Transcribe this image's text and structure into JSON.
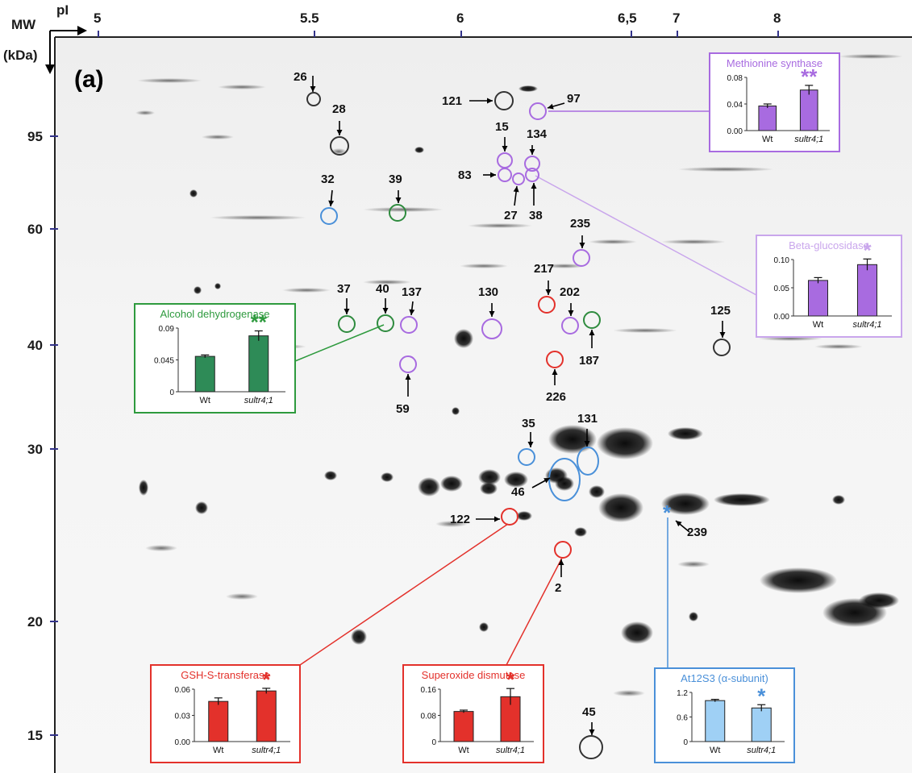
{
  "panel_label": "(a)",
  "axes": {
    "mw_label": "MW",
    "mw_unit": "(kDa)",
    "pi_label": "pI",
    "pi_ticks": [
      "5",
      "5.5",
      "6",
      "6,5",
      "7",
      "8"
    ],
    "mw_ticks": [
      "95",
      "60",
      "40",
      "30",
      "20",
      "15"
    ]
  },
  "spots": [
    {
      "id": "26",
      "group": "black"
    },
    {
      "id": "28",
      "group": "black"
    },
    {
      "id": "121",
      "group": "black"
    },
    {
      "id": "97",
      "group": "purple"
    },
    {
      "id": "15",
      "group": "purple"
    },
    {
      "id": "134",
      "group": "purple"
    },
    {
      "id": "83",
      "group": "purple"
    },
    {
      "id": "27",
      "group": "purple"
    },
    {
      "id": "38",
      "group": "purple"
    },
    {
      "id": "32",
      "group": "blue"
    },
    {
      "id": "39",
      "group": "green"
    },
    {
      "id": "235",
      "group": "purple"
    },
    {
      "id": "217",
      "group": "red"
    },
    {
      "id": "37",
      "group": "green"
    },
    {
      "id": "40",
      "group": "green"
    },
    {
      "id": "137",
      "group": "purple"
    },
    {
      "id": "130",
      "group": "purple"
    },
    {
      "id": "202",
      "group": "purple"
    },
    {
      "id": "187",
      "group": "green"
    },
    {
      "id": "125",
      "group": "black"
    },
    {
      "id": "59",
      "group": "purple"
    },
    {
      "id": "226",
      "group": "red"
    },
    {
      "id": "35",
      "group": "blue"
    },
    {
      "id": "131",
      "group": "blue"
    },
    {
      "id": "46",
      "group": "blue"
    },
    {
      "id": "122",
      "group": "red"
    },
    {
      "id": "239",
      "group": "blue"
    },
    {
      "id": "2",
      "group": "red"
    },
    {
      "id": "45",
      "group": "black"
    }
  ],
  "colors": {
    "purple": "#a86be0",
    "green": "#2e8b3e",
    "red": "#e3312b",
    "blue": "#4a90d9",
    "black": "#333333"
  },
  "chart_data": [
    {
      "type": "bar",
      "title": "Methionine synthase",
      "categories": [
        "Wt",
        "sultr4;1"
      ],
      "values": [
        0.037,
        0.061
      ],
      "errors": [
        0.003,
        0.007
      ],
      "ylim": [
        0,
        0.08
      ],
      "yticks": [
        "0.08",
        "0.04",
        "0.00"
      ],
      "significance": "**",
      "color": "#a86be0",
      "accent": "#a86be0"
    },
    {
      "type": "bar",
      "title": "Beta-glucosidase",
      "categories": [
        "Wt",
        "sultr4;1"
      ],
      "values": [
        0.063,
        0.091
      ],
      "errors": [
        0.005,
        0.01
      ],
      "ylim": [
        0,
        0.1
      ],
      "yticks": [
        "0.10",
        "0.05",
        "0.00"
      ],
      "significance": "*",
      "color": "#a86be0",
      "accent": "#c9a6ec"
    },
    {
      "type": "bar",
      "title": "Alcohol dehydrogenase",
      "categories": [
        "Wt",
        "sultr4;1"
      ],
      "values": [
        0.05,
        0.079
      ],
      "errors": [
        0.002,
        0.007
      ],
      "ylim": [
        0,
        0.09
      ],
      "yticks": [
        "0.09",
        "0.045",
        "0"
      ],
      "significance": "**",
      "color": "#2e8b57",
      "accent": "#2e9a3e"
    },
    {
      "type": "bar",
      "title": "GSH-S-transferase",
      "categories": [
        "Wt",
        "sultr4;1"
      ],
      "values": [
        0.046,
        0.058
      ],
      "errors": [
        0.004,
        0.003
      ],
      "ylim": [
        0,
        0.06
      ],
      "yticks": [
        "0.06",
        "0.03",
        "0.00"
      ],
      "significance": "*",
      "color": "#e3312b",
      "accent": "#e3312b"
    },
    {
      "type": "bar",
      "title": "Superoxide dismutase",
      "categories": [
        "Wt",
        "sultr4;1"
      ],
      "values": [
        0.092,
        0.137
      ],
      "errors": [
        0.004,
        0.025
      ],
      "ylim": [
        0,
        0.16
      ],
      "yticks": [
        "0.16",
        "0.08",
        "0"
      ],
      "significance": "*",
      "color": "#e3312b",
      "accent": "#e3312b"
    },
    {
      "type": "bar",
      "title": "At12S3 (α-subunit)",
      "categories": [
        "Wt",
        "sultr4;1"
      ],
      "values": [
        1.0,
        0.82
      ],
      "errors": [
        0.03,
        0.08
      ],
      "ylim": [
        0,
        1.2
      ],
      "yticks": [
        "1.2",
        "0.6",
        "0"
      ],
      "significance": "*",
      "color": "#9fd0f5",
      "accent": "#4a90d9"
    }
  ]
}
